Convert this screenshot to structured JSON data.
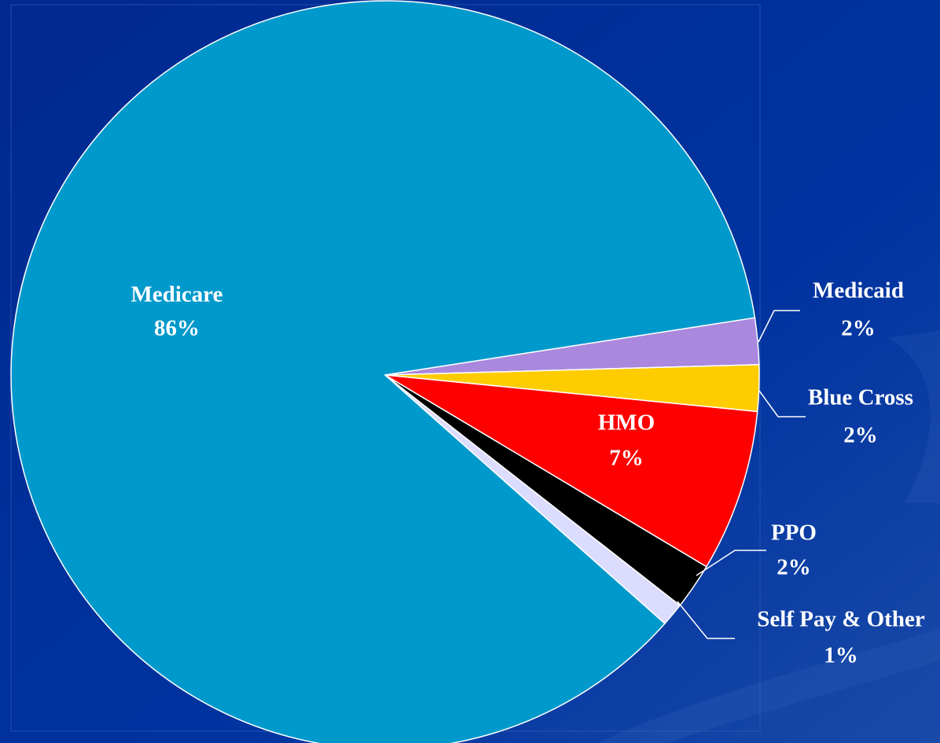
{
  "chart_data": {
    "type": "pie",
    "categories": [
      "Medicare",
      "Medicaid",
      "Blue Cross",
      "HMO",
      "PPO",
      "Self Pay & Other"
    ],
    "values": [
      86,
      2,
      2,
      7,
      2,
      1
    ],
    "value_labels": [
      "86%",
      "2%",
      "2%",
      "7%",
      "2%",
      "1%"
    ],
    "colors": [
      "#0099cc",
      "#aa88dd",
      "#ffcc00",
      "#ff0000",
      "#000000",
      "#dcdcff"
    ]
  }
}
